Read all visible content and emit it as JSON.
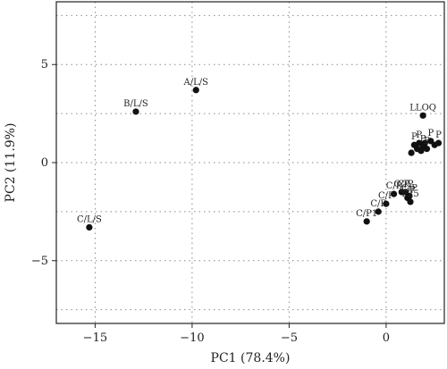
{
  "chart_data": {
    "type": "scatter",
    "xlabel": "PC1 (78.4%)",
    "ylabel": "PC2 (11.9%)",
    "xlim": [
      -17,
      3
    ],
    "ylim": [
      -8.2,
      8.2
    ],
    "x_ticks": [
      -15,
      -10,
      -5,
      0
    ],
    "y_ticks": [
      -5,
      0,
      5
    ],
    "x_grid": [
      -15,
      -10,
      -5,
      0
    ],
    "y_grid": [
      -7.5,
      -5,
      -2.5,
      0,
      2.5,
      5,
      7.5
    ],
    "grid": true,
    "points": [
      {
        "x": -15.3,
        "y": -3.3,
        "label": "C/L/S"
      },
      {
        "x": -12.9,
        "y": 2.6,
        "label": "B/L/S"
      },
      {
        "x": -9.8,
        "y": 3.7,
        "label": "A/L/S"
      },
      {
        "x": 1.9,
        "y": 2.4,
        "label": "LLOQ"
      },
      {
        "x": -1.0,
        "y": -3.0,
        "label": "C/P1"
      },
      {
        "x": -0.4,
        "y": -2.5,
        "label": "C/P"
      },
      {
        "x": 0.0,
        "y": -2.1,
        "label": "C/P"
      },
      {
        "x": 0.4,
        "y": -1.6,
        "label": "C/P"
      },
      {
        "x": 0.8,
        "y": -1.5,
        "label": "C/P"
      },
      {
        "x": 1.0,
        "y": -1.5,
        "label": "C/P"
      },
      {
        "x": 1.1,
        "y": -1.8,
        "label": "C/P"
      },
      {
        "x": 1.2,
        "y": -1.7,
        "label": "C/P"
      },
      {
        "x": 1.25,
        "y": -2.0,
        "label": "P25"
      },
      {
        "x": 1.3,
        "y": 0.5,
        "label": ""
      },
      {
        "x": 1.45,
        "y": 0.9,
        "label": "P"
      },
      {
        "x": 1.6,
        "y": 0.7,
        "label": ""
      },
      {
        "x": 1.7,
        "y": 1.0,
        "label": "P"
      },
      {
        "x": 1.8,
        "y": 0.6,
        "label": ""
      },
      {
        "x": 1.9,
        "y": 0.8,
        "label": "P"
      },
      {
        "x": 2.0,
        "y": 1.0,
        "label": ""
      },
      {
        "x": 2.1,
        "y": 0.7,
        "label": "P"
      },
      {
        "x": 2.3,
        "y": 1.1,
        "label": "P"
      },
      {
        "x": 2.5,
        "y": 0.9,
        "label": ""
      },
      {
        "x": 2.7,
        "y": 1.0,
        "label": "P"
      }
    ]
  }
}
